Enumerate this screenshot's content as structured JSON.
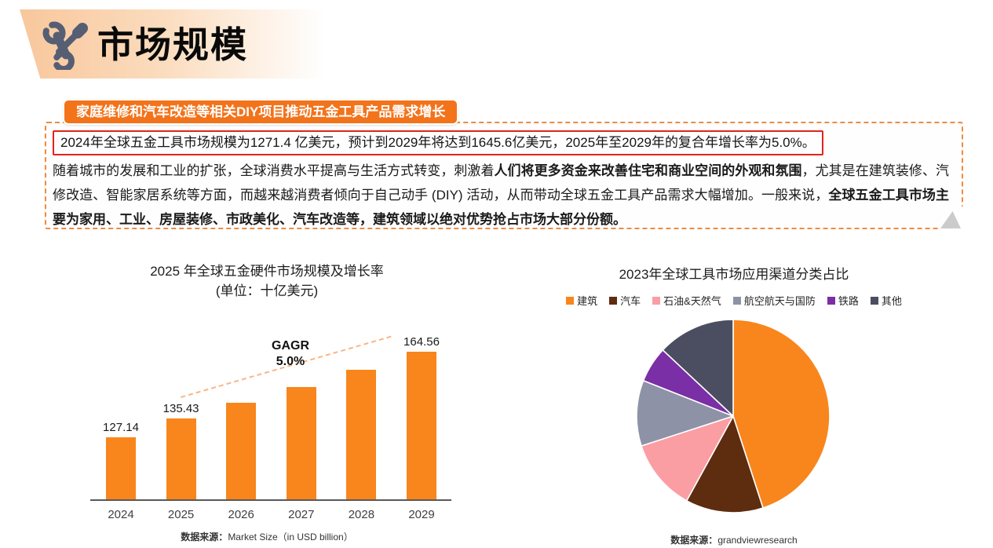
{
  "header": {
    "title": "市场规模"
  },
  "callout": {
    "badge": "家庭维修和汽车改造等相关DIY项目推动五金工具产品需求增长",
    "highlight": "2024年全球五金工具市场规模为1271.4 亿美元，预计到2029年将达到1645.6亿美元，2025年至2029年的复合年增长率为5.0%。",
    "paragraph": [
      {
        "text": "随着城市的发展和工业的扩张，全球消费水平提高与生活方式转变，刺激着",
        "bold": false
      },
      {
        "text": "人们将更多资金来改善住宅和商业空间的外观和氛围",
        "bold": true
      },
      {
        "text": "，尤其是在建筑装修、汽修改造、智能家居系统等方面，而越来越消费者倾向于自己动手 (DIY) 活动，从而带动全球五金工具产品需求大幅增加。一般来说，",
        "bold": false
      },
      {
        "text": "全球五金工具市场主要为家用、工业、房屋装修、市政美化、汽车改造等，建筑领域以绝对优势抢占市场大部分份额。",
        "bold": true
      }
    ]
  },
  "chart_data": [
    {
      "type": "bar",
      "title": "2025 年全球五金硬件市场规模及增长率",
      "subtitle": "(单位：十亿美元)",
      "categories": [
        "2024",
        "2025",
        "2026",
        "2027",
        "2028",
        "2029"
      ],
      "values": [
        127.14,
        135.43,
        142.2,
        149.31,
        156.78,
        164.56
      ],
      "labels": [
        "127.14",
        "135.43",
        "",
        "",
        "",
        "164.56"
      ],
      "annotation": {
        "line1": "GAGR",
        "line2": "5.0%"
      },
      "ylim": [
        100,
        175
      ],
      "bar_color": "#F8861C",
      "axis_color": "#58595B",
      "trend_color": "#F9B584",
      "source_label": "数据来源：",
      "source_value": "Market Size（in USD billion）"
    },
    {
      "type": "pie",
      "title": "2023年全球工具市场应用渠道分类占比",
      "slices": [
        {
          "label": "建筑",
          "value": 45,
          "color": "#F8861C"
        },
        {
          "label": "汽车",
          "value": 13,
          "color": "#5E2C0E"
        },
        {
          "label": "石油&天然气",
          "value": 12,
          "color": "#FA9EA4"
        },
        {
          "label": "航空航天与国防",
          "value": 11,
          "color": "#8E92A6"
        },
        {
          "label": "铁路",
          "value": 6,
          "color": "#7A2FA6"
        },
        {
          "label": "其他",
          "value": 13,
          "color": "#4A4E60"
        }
      ],
      "legend_position": "top",
      "source_label": "数据来源：",
      "source_value": "grandviewresearch"
    }
  ],
  "colors": {
    "accent_orange": "#F3731B",
    "dashed_border": "#EF8B3F",
    "highlight_border": "#E2231A",
    "header_gradient_start": "#F8C79C",
    "icon_slate": "#565E73",
    "fold_gray": "#CBCBCB"
  }
}
